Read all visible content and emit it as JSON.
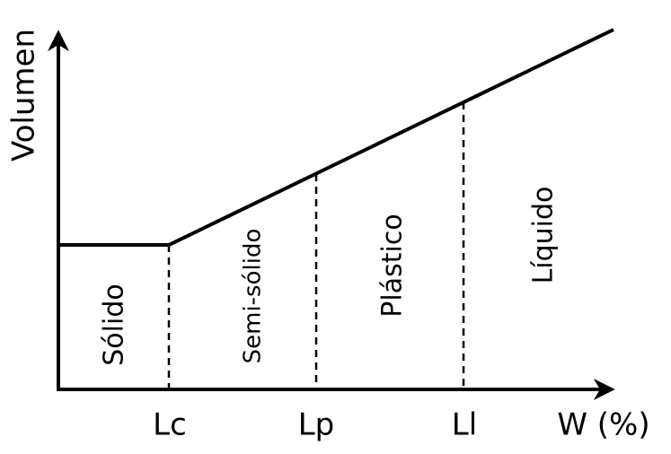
{
  "axes": {
    "y_label": "Volumen",
    "x_label": "W (%)"
  },
  "limits": [
    "Lc",
    "Lp",
    "Ll"
  ],
  "states": [
    "Sólido",
    "Semi-sólido",
    "Plástico",
    "Líquido"
  ]
}
